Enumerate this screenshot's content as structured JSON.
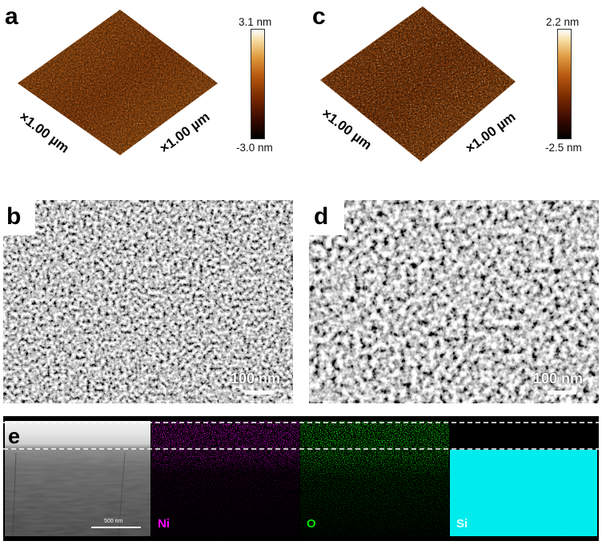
{
  "panels": {
    "a": {
      "letter": "a",
      "x_axis_label": "×1.00 µm",
      "y_axis_label": "×1.00 µm",
      "scale_max": "3.1 nm",
      "scale_min": "-3.0 nm",
      "colormap": [
        "#000000",
        "#3a0a00",
        "#7a2a00",
        "#b85a10",
        "#e09a40",
        "#f6dca0",
        "#ffffff"
      ]
    },
    "c": {
      "letter": "c",
      "x_axis_label": "×1.00 µm",
      "y_axis_label": "×1.00 µm",
      "scale_max": "2.2 nm",
      "scale_min": "-2.5 nm",
      "colormap": [
        "#000000",
        "#3a0a00",
        "#7a2a00",
        "#b85a10",
        "#e09a40",
        "#f6dca0",
        "#ffffff"
      ]
    },
    "b": {
      "letter": "b",
      "scalebar": "100 nm"
    },
    "d": {
      "letter": "d",
      "scalebar": "100 nm"
    },
    "e": {
      "letter": "e",
      "scalebar": "500 nm",
      "maps": [
        {
          "label": "Ni",
          "color": "#ff00ff"
        },
        {
          "label": "O",
          "color": "#00e000"
        },
        {
          "label": "Si",
          "color": "#dfffff"
        }
      ]
    }
  }
}
